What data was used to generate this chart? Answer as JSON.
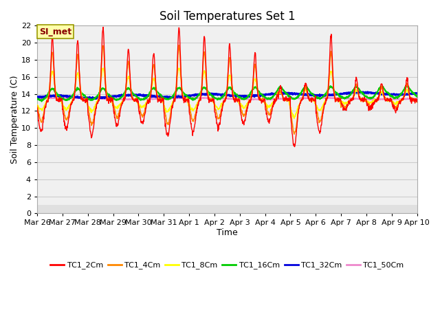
{
  "title": "Soil Temperatures Set 1",
  "xlabel": "Time",
  "ylabel": "Soil Temperature (C)",
  "ylim": [
    0,
    22
  ],
  "yticks": [
    0,
    2,
    4,
    6,
    8,
    10,
    12,
    14,
    16,
    18,
    20,
    22
  ],
  "x_labels": [
    "Mar 26",
    "Mar 27",
    "Mar 28",
    "Mar 29",
    "Mar 30",
    "Mar 31",
    "Apr 1",
    "Apr 2",
    "Apr 3",
    "Apr 4",
    "Apr 5",
    "Apr 6",
    "Apr 7",
    "Apr 8",
    "Apr 9",
    "Apr 10"
  ],
  "series_colors": [
    "#ff0000",
    "#ff8800",
    "#ffff00",
    "#00cc00",
    "#0000dd",
    "#ee88cc"
  ],
  "series_labels": [
    "TC1_2Cm",
    "TC1_4Cm",
    "TC1_8Cm",
    "TC1_16Cm",
    "TC1_32Cm",
    "TC1_50Cm"
  ],
  "annotation_text": "SI_met",
  "annotation_box_facecolor": "#ffffaa",
  "annotation_box_edgecolor": "#999900",
  "annotation_text_color": "#880000",
  "fig_facecolor": "#ffffff",
  "plot_facecolor": "#ffffff",
  "band_color_dark": "#e0e0e0",
  "band_color_light": "#f0f0f0",
  "grid_color": "#d8d8d8",
  "title_fontsize": 12,
  "label_fontsize": 9,
  "tick_fontsize": 8,
  "n_days": 15,
  "pts_per_day": 96,
  "base_temp": 13.3
}
